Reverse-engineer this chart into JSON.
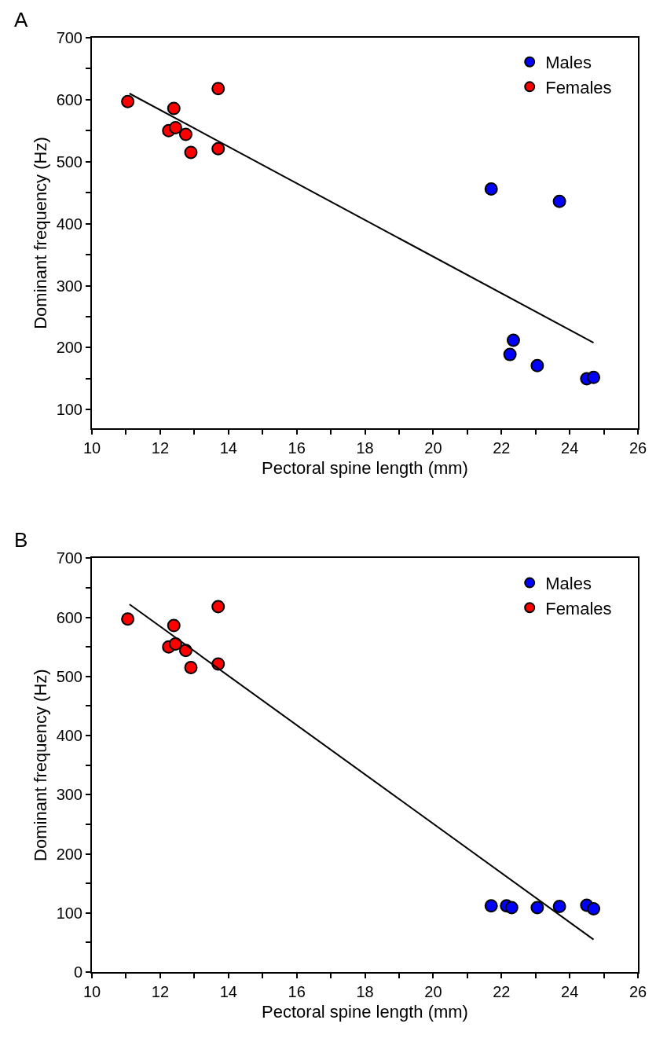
{
  "chart_data": [
    {
      "type": "scatter",
      "xlabel": "Pectoral spine length (mm)",
      "ylabel": "Dominant frequency (Hz)",
      "annotations": [
        "A"
      ],
      "legend": "top right",
      "marker": "circle",
      "xlim": [
        10,
        26
      ],
      "ylim": [
        70,
        700
      ],
      "xticks": [
        10,
        {
          "value": 11,
          "label": null
        },
        12,
        {
          "value": 13,
          "label": null
        },
        14,
        {
          "value": 15,
          "label": null
        },
        16,
        {
          "value": 17,
          "label": null
        },
        18,
        {
          "value": 19,
          "label": null
        },
        20,
        {
          "value": 21,
          "label": null
        },
        22,
        {
          "value": 23,
          "label": null
        },
        24,
        {
          "value": 25,
          "label": null
        },
        26
      ],
      "yticks": [
        100,
        {
          "value": 150,
          "label": null
        },
        200,
        {
          "value": 250,
          "label": null
        },
        300,
        {
          "value": 350,
          "label": null
        },
        400,
        {
          "value": 450,
          "label": null
        },
        500,
        {
          "value": 550,
          "label": null
        },
        600,
        {
          "value": 650,
          "label": null
        },
        700
      ],
      "series": [
        {
          "name": "Males",
          "color": "#0000ff",
          "x": [
            21.7,
            23.7,
            22.35,
            22.25,
            23.05,
            24.5,
            24.7
          ],
          "values": [
            456,
            436,
            212,
            189,
            171,
            150,
            152
          ]
        },
        {
          "name": "Females",
          "color": "#ff0000",
          "x": [
            11.05,
            12.25,
            12.4,
            12.45,
            12.75,
            12.9,
            13.7,
            13.7
          ],
          "values": [
            597,
            550,
            586,
            555,
            544,
            515,
            618,
            521
          ]
        },
        {
          "type": "line",
          "color": "#000000",
          "marker": "none",
          "x": [
            11.1,
            24.7
          ],
          "values": [
            610,
            208
          ]
        }
      ]
    },
    {
      "type": "scatter",
      "xlabel": "Pectoral spine length (mm)",
      "ylabel": "Dominant frequency (Hz)",
      "annotations": [
        "B"
      ],
      "legend": "top right",
      "marker": "circle",
      "xlim": [
        10,
        26
      ],
      "ylim": [
        0,
        700
      ],
      "xticks": [
        10,
        {
          "value": 11,
          "label": null
        },
        12,
        {
          "value": 13,
          "label": null
        },
        14,
        {
          "value": 15,
          "label": null
        },
        16,
        {
          "value": 17,
          "label": null
        },
        18,
        {
          "value": 19,
          "label": null
        },
        20,
        {
          "value": 21,
          "label": null
        },
        22,
        {
          "value": 23,
          "label": null
        },
        24,
        {
          "value": 25,
          "label": null
        },
        26
      ],
      "yticks": [
        0,
        {
          "value": 50,
          "label": null
        },
        100,
        {
          "value": 150,
          "label": null
        },
        200,
        {
          "value": 250,
          "label": null
        },
        300,
        {
          "value": 350,
          "label": null
        },
        400,
        {
          "value": 450,
          "label": null
        },
        500,
        {
          "value": 550,
          "label": null
        },
        600,
        {
          "value": 650,
          "label": null
        },
        700
      ],
      "series": [
        {
          "name": "Males",
          "color": "#0000ff",
          "x": [
            21.7,
            22.15,
            22.3,
            23.05,
            23.7,
            24.5,
            24.7
          ],
          "values": [
            112,
            112,
            109,
            109,
            111,
            113,
            107
          ]
        },
        {
          "name": "Females",
          "color": "#ff0000",
          "x": [
            11.05,
            12.25,
            12.4,
            12.45,
            12.75,
            12.9,
            13.7,
            13.7
          ],
          "values": [
            597,
            550,
            586,
            555,
            544,
            515,
            618,
            521
          ]
        },
        {
          "type": "line",
          "color": "#000000",
          "marker": "none",
          "x": [
            11.1,
            24.7
          ],
          "values": [
            622,
            55
          ]
        }
      ]
    }
  ]
}
